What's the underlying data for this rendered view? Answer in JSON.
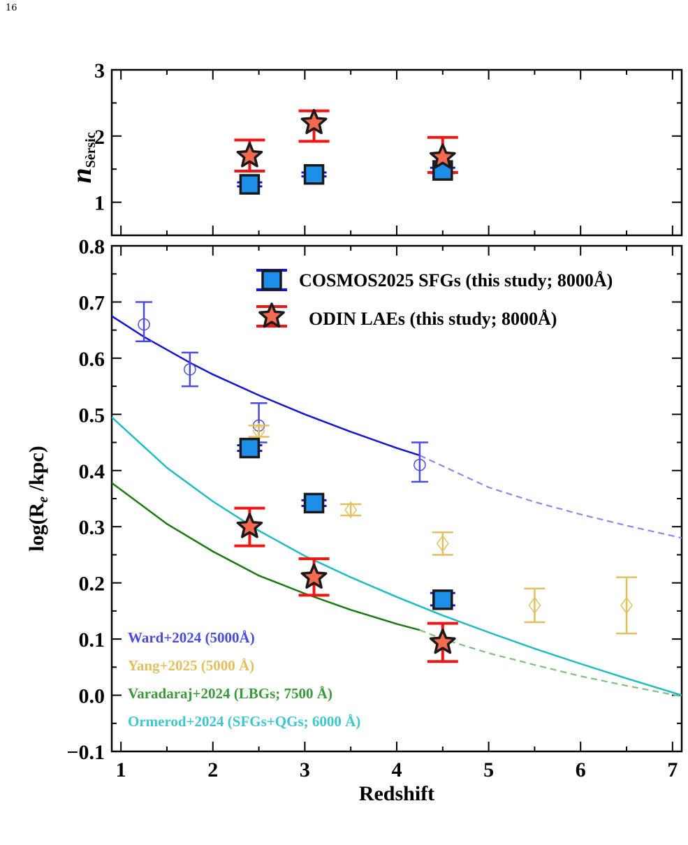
{
  "page_number": "16",
  "chart_data": [
    {
      "panel": "top",
      "type": "scatter",
      "ylabel_main": "n",
      "ylabel_sub": "Sèrsic",
      "xlim": [
        0.9,
        7.1
      ],
      "ylim": [
        0.5,
        3
      ],
      "yticks": [
        "1",
        "2",
        "3"
      ],
      "series": [
        {
          "key": "cosmos",
          "marker": "square",
          "color": "#1E8FE8",
          "points": [
            {
              "x": 2.4,
              "y": 1.27,
              "lo": 1.24,
              "hi": 1.3
            },
            {
              "x": 3.1,
              "y": 1.42,
              "lo": 1.39,
              "hi": 1.45
            },
            {
              "x": 4.5,
              "y": 1.48,
              "lo": 1.44,
              "hi": 1.52
            }
          ]
        },
        {
          "key": "odin",
          "marker": "star",
          "color": "#F36A50",
          "points": [
            {
              "x": 2.4,
              "y": 1.7,
              "lo": 1.47,
              "hi": 1.94
            },
            {
              "x": 3.1,
              "y": 2.2,
              "lo": 1.92,
              "hi": 2.38
            },
            {
              "x": 4.5,
              "y": 1.68,
              "lo": 1.45,
              "hi": 1.98
            }
          ]
        }
      ]
    },
    {
      "panel": "bottom",
      "type": "scatter",
      "xlabel": "Redshift",
      "ylabel": "log(R",
      "ylabel_sub": "e",
      "ylabel_tail": " /kpc)",
      "xlim": [
        0.9,
        7.1
      ],
      "ylim": [
        -0.1,
        0.8
      ],
      "xticks": [
        "1",
        "2",
        "3",
        "4",
        "5",
        "6",
        "7"
      ],
      "yticks": [
        "−0.1",
        "0.0",
        "0.1",
        "0.2",
        "0.3",
        "0.4",
        "0.5",
        "0.6",
        "0.7",
        "0.8"
      ],
      "legend": [
        {
          "marker": "square",
          "label": "COSMOS2025 SFGs (this study; 8000Å)"
        },
        {
          "marker": "star",
          "label": "ODIN LAEs (this study; 8000Å)"
        }
      ],
      "annotations": [
        {
          "text": "Ward+2024 (5000Å)",
          "color": "#4A4AE0"
        },
        {
          "text": "Yang+2025 (5000 Å)",
          "color": "#E3C05E"
        },
        {
          "text": "Varadaraj+2024 (LBGs; 7500 Å)",
          "color": "#3A9A3A"
        },
        {
          "text": "Ormerod+2024 (SFGs+QGs; 6000 Å)",
          "color": "#3CC8CC"
        }
      ],
      "series": [
        {
          "key": "cosmos",
          "marker": "square",
          "color": "#1E8FE8",
          "points": [
            {
              "x": 2.4,
              "y": 0.44,
              "lo": 0.435,
              "hi": 0.445
            },
            {
              "x": 3.1,
              "y": 0.342,
              "lo": 0.337,
              "hi": 0.347
            },
            {
              "x": 4.5,
              "y": 0.17,
              "lo": 0.16,
              "hi": 0.182
            }
          ]
        },
        {
          "key": "odin",
          "marker": "star",
          "color": "#F36A50",
          "points": [
            {
              "x": 2.4,
              "y": 0.3,
              "lo": 0.266,
              "hi": 0.333
            },
            {
              "x": 3.1,
              "y": 0.21,
              "lo": 0.178,
              "hi": 0.243
            },
            {
              "x": 4.5,
              "y": 0.094,
              "lo": 0.06,
              "hi": 0.128
            }
          ]
        },
        {
          "key": "ward",
          "marker": "circle",
          "color": "#4A4AE0",
          "points": [
            {
              "x": 1.25,
              "y": 0.66,
              "lo": 0.63,
              "hi": 0.7
            },
            {
              "x": 1.75,
              "y": 0.58,
              "lo": 0.55,
              "hi": 0.61
            },
            {
              "x": 2.5,
              "y": 0.48,
              "lo": 0.45,
              "hi": 0.52
            },
            {
              "x": 4.25,
              "y": 0.41,
              "lo": 0.38,
              "hi": 0.45
            }
          ]
        },
        {
          "key": "yang",
          "marker": "diamond",
          "color": "#E3C05E",
          "points": [
            {
              "x": 2.5,
              "y": 0.47,
              "lo": 0.46,
              "hi": 0.48
            },
            {
              "x": 3.5,
              "y": 0.33,
              "lo": 0.32,
              "hi": 0.34
            },
            {
              "x": 4.5,
              "y": 0.27,
              "lo": 0.25,
              "hi": 0.29
            },
            {
              "x": 5.5,
              "y": 0.16,
              "lo": 0.13,
              "hi": 0.19
            },
            {
              "x": 6.5,
              "y": 0.16,
              "lo": 0.11,
              "hi": 0.21
            }
          ]
        }
      ],
      "curves": [
        {
          "key": "ward",
          "color": "#1515D5",
          "dash_color": "#8A8AEA",
          "x_split": 4.25,
          "x": [
            0.9,
            1.25,
            1.75,
            2.0,
            2.5,
            3.0,
            3.5,
            4.0,
            4.25,
            5.0,
            5.5,
            6.0,
            6.5,
            7.1
          ],
          "y": [
            0.675,
            0.638,
            0.592,
            0.571,
            0.534,
            0.5,
            0.469,
            0.44,
            0.427,
            0.37,
            0.344,
            0.322,
            0.302,
            0.28
          ]
        },
        {
          "key": "varadaraj",
          "color": "#1A7A10",
          "dash_color": "#7FC07F",
          "x_split": 4.25,
          "x": [
            0.9,
            1.5,
            2.0,
            2.5,
            3.0,
            3.5,
            4.0,
            4.25,
            4.5,
            5.0,
            5.5,
            6.0,
            6.5,
            7.1
          ],
          "y": [
            0.378,
            0.305,
            0.256,
            0.213,
            0.181,
            0.152,
            0.127,
            0.116,
            0.1,
            0.075,
            0.054,
            0.034,
            0.017,
            -0.002
          ]
        },
        {
          "key": "ormerod",
          "color": "#20BCC4",
          "dash_color": "#20BCC4",
          "x_split": 7.2,
          "x": [
            0.9,
            1.5,
            2.0,
            2.5,
            3.0,
            3.5,
            4.0,
            4.5,
            5.0,
            5.5,
            6.0,
            6.5,
            7.1
          ],
          "y": [
            0.495,
            0.405,
            0.345,
            0.293,
            0.248,
            0.21,
            0.175,
            0.142,
            0.112,
            0.083,
            0.056,
            0.03,
            0.0
          ]
        }
      ]
    }
  ]
}
